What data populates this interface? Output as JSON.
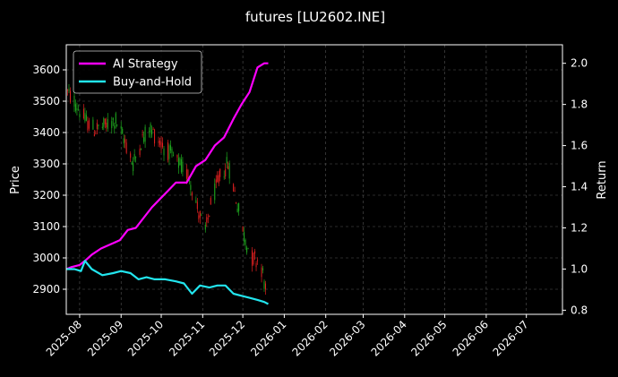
{
  "chart_data": {
    "type": "line",
    "title": "futures [LU2602.INE]",
    "ylabel": "Price",
    "y2label": "Return",
    "grid": true,
    "legend_position": "top-left",
    "x_range": [
      "2025-07-22",
      "2026-07-28"
    ],
    "ylim": [
      2820,
      3680
    ],
    "y2lim": [
      0.78,
      2.09
    ],
    "x_ticks": [
      "2025-08",
      "2025-09",
      "2025-10",
      "2025-11",
      "2025-12",
      "2026-01",
      "2026-02",
      "2026-03",
      "2026-04",
      "2026-05",
      "2026-06",
      "2026-07"
    ],
    "y_ticks": [
      2900,
      3000,
      3100,
      3200,
      3300,
      3400,
      3500,
      3600
    ],
    "y2_ticks": [
      "0.8",
      "1.0",
      "1.2",
      "1.4",
      "1.6",
      "1.8",
      "2.0"
    ],
    "colors": {
      "up": "#1fa81f",
      "down": "#e02020",
      "ai": "#ff00ff",
      "bh": "#22e5ee"
    },
    "price_path": [
      [
        "2025-07-22",
        3530
      ],
      [
        "2025-07-28",
        3500
      ],
      [
        "2025-08-05",
        3440
      ],
      [
        "2025-08-12",
        3410
      ],
      [
        "2025-08-20",
        3420
      ],
      [
        "2025-08-28",
        3440
      ],
      [
        "2025-09-03",
        3380
      ],
      [
        "2025-09-10",
        3300
      ],
      [
        "2025-09-16",
        3370
      ],
      [
        "2025-09-22",
        3420
      ],
      [
        "2025-09-28",
        3380
      ],
      [
        "2025-10-06",
        3340
      ],
      [
        "2025-10-14",
        3300
      ],
      [
        "2025-10-22",
        3260
      ],
      [
        "2025-10-28",
        3160
      ],
      [
        "2025-11-03",
        3080
      ],
      [
        "2025-11-07",
        3170
      ],
      [
        "2025-11-14",
        3260
      ],
      [
        "2025-11-20",
        3300
      ],
      [
        "2025-11-26",
        3190
      ],
      [
        "2025-12-02",
        3070
      ],
      [
        "2025-12-08",
        3000
      ],
      [
        "2025-12-14",
        2990
      ],
      [
        "2025-12-18",
        2900
      ]
    ],
    "series": [
      {
        "name": "AI Strategy",
        "axis": "right",
        "points": [
          [
            "2025-07-22",
            1.0
          ],
          [
            "2025-07-26",
            1.01
          ],
          [
            "2025-08-01",
            1.02
          ],
          [
            "2025-08-05",
            1.04
          ],
          [
            "2025-08-10",
            1.07
          ],
          [
            "2025-08-17",
            1.1
          ],
          [
            "2025-08-24",
            1.12
          ],
          [
            "2025-08-31",
            1.14
          ],
          [
            "2025-09-06",
            1.19
          ],
          [
            "2025-09-12",
            1.2
          ],
          [
            "2025-09-18",
            1.25
          ],
          [
            "2025-09-24",
            1.3
          ],
          [
            "2025-09-30",
            1.34
          ],
          [
            "2025-10-06",
            1.38
          ],
          [
            "2025-10-12",
            1.42
          ],
          [
            "2025-10-20",
            1.42
          ],
          [
            "2025-10-27",
            1.5
          ],
          [
            "2025-11-03",
            1.53
          ],
          [
            "2025-11-10",
            1.6
          ],
          [
            "2025-11-17",
            1.64
          ],
          [
            "2025-11-24",
            1.73
          ],
          [
            "2025-11-30",
            1.8
          ],
          [
            "2025-12-06",
            1.86
          ],
          [
            "2025-12-12",
            1.98
          ],
          [
            "2025-12-17",
            2.0
          ],
          [
            "2025-12-20",
            2.0
          ]
        ]
      },
      {
        "name": "Buy-and-Hold",
        "axis": "right",
        "points": [
          [
            "2025-07-22",
            1.0
          ],
          [
            "2025-07-28",
            1.0
          ],
          [
            "2025-08-02",
            0.99
          ],
          [
            "2025-08-05",
            1.04
          ],
          [
            "2025-08-10",
            1.0
          ],
          [
            "2025-08-18",
            0.97
          ],
          [
            "2025-08-26",
            0.98
          ],
          [
            "2025-09-01",
            0.99
          ],
          [
            "2025-09-08",
            0.98
          ],
          [
            "2025-09-14",
            0.95
          ],
          [
            "2025-09-20",
            0.96
          ],
          [
            "2025-09-26",
            0.95
          ],
          [
            "2025-10-04",
            0.95
          ],
          [
            "2025-10-12",
            0.94
          ],
          [
            "2025-10-18",
            0.93
          ],
          [
            "2025-10-24",
            0.88
          ],
          [
            "2025-10-30",
            0.92
          ],
          [
            "2025-11-06",
            0.91
          ],
          [
            "2025-11-12",
            0.92
          ],
          [
            "2025-11-18",
            0.92
          ],
          [
            "2025-11-24",
            0.88
          ],
          [
            "2025-11-30",
            0.87
          ],
          [
            "2025-12-06",
            0.86
          ],
          [
            "2025-12-12",
            0.85
          ],
          [
            "2025-12-17",
            0.84
          ],
          [
            "2025-12-20",
            0.83
          ]
        ]
      }
    ]
  }
}
